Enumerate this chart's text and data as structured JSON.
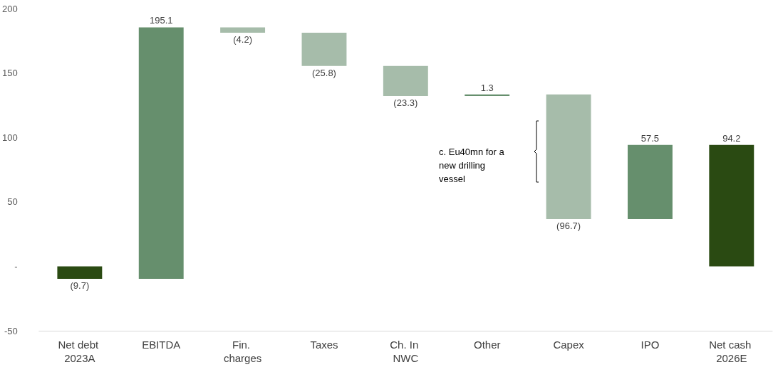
{
  "chart_data": {
    "type": "bar",
    "categories": [
      "Net debt 2023A",
      "EBITDA",
      "Fin. charges",
      "Taxes",
      "Ch. In NWC",
      "Other",
      "Capex",
      "IPO",
      "Net cash 2026E"
    ],
    "values": [
      -9.7,
      195.1,
      -4.2,
      -25.8,
      -23.3,
      1.3,
      -96.7,
      57.5,
      94.2
    ],
    "base": [
      0,
      -9.7,
      185.4,
      181.2,
      155.4,
      132.1,
      133.4,
      36.7,
      0
    ],
    "colors": [
      "#2a4a12",
      "#668f6d",
      "#a6bcaa",
      "#a6bcaa",
      "#a6bcaa",
      "#668f6d",
      "#a6bcaa",
      "#668f6d",
      "#2a4a12"
    ],
    "value_labels": [
      "(9.7)",
      "195.1",
      "(4.2)",
      "(25.8)",
      "(23.3)",
      "1.3",
      "(96.7)",
      "57.5",
      "94.2"
    ],
    "ylim": [
      -50,
      200
    ],
    "yticks": [
      {
        "value": -50,
        "label": "-50"
      },
      {
        "value": 0,
        "label": "-"
      },
      50,
      100,
      150,
      200
    ],
    "grid": false,
    "annotations": [
      "c. Eu40mn for a new drilling vessel"
    ]
  }
}
